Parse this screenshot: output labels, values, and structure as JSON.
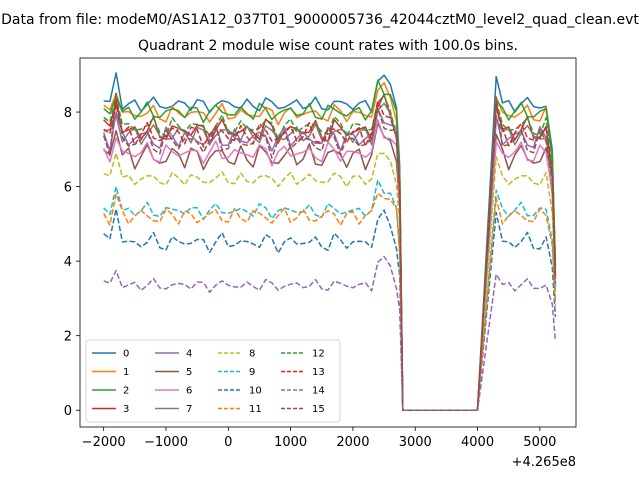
{
  "suptitle": "Data from file: modeM0/AS1A12_037T01_9000005736_42044cztM0_level2_quad_clean.evt",
  "chart_data": {
    "type": "line",
    "title": "Quadrant 2 module wise count rates with 100.0s bins.",
    "xlabel": "",
    "ylabel": "",
    "x_offset_label": "+4.265e8",
    "xlim": [
      -2380,
      5580
    ],
    "ylim": [
      -0.45,
      9.45
    ],
    "xticks": [
      -2000,
      -1000,
      0,
      1000,
      2000,
      3000,
      4000,
      5000
    ],
    "xtick_labels": [
      "−2000",
      "−1000",
      "0",
      "1000",
      "2000",
      "3000",
      "4000",
      "5000"
    ],
    "yticks": [
      0,
      2,
      4,
      6,
      8
    ],
    "ytick_labels": [
      "0",
      "2",
      "4",
      "6",
      "8"
    ],
    "grid": false,
    "legend_placement": "lower-left",
    "legend_columns": 4,
    "x_start": -2000,
    "bin_width": 100,
    "gap_start": 2800,
    "gap_end": 4000,
    "x_end": 5250,
    "tail_bin": 5200,
    "series": [
      {
        "name": "0",
        "color": "#1f77b4",
        "dash": "solid",
        "mean": 8.2,
        "amp": 0.25,
        "peak": 9.15,
        "tail": 3.8,
        "phase": 0.3
      },
      {
        "name": "1",
        "color": "#ff7f0e",
        "dash": "solid",
        "mean": 7.95,
        "amp": 0.3,
        "peak": 8.6,
        "tail": 4.0,
        "phase": 1.1
      },
      {
        "name": "2",
        "color": "#2ca02c",
        "dash": "solid",
        "mean": 8.0,
        "amp": 0.3,
        "peak": 8.5,
        "tail": 3.9,
        "phase": 2.2
      },
      {
        "name": "3",
        "color": "#d62728",
        "dash": "solid",
        "mean": 7.5,
        "amp": 0.4,
        "peak": 8.4,
        "tail": 3.6,
        "phase": 0.7
      },
      {
        "name": "4",
        "color": "#9467bd",
        "dash": "solid",
        "mean": 7.3,
        "amp": 0.4,
        "peak": 8.1,
        "tail": 3.5,
        "phase": 3.1
      },
      {
        "name": "5",
        "color": "#8c564b",
        "dash": "solid",
        "mean": 6.8,
        "amp": 0.45,
        "peak": 7.6,
        "tail": 3.4,
        "phase": 1.9
      },
      {
        "name": "6",
        "color": "#e377c2",
        "dash": "solid",
        "mean": 6.9,
        "amp": 0.35,
        "peak": 7.4,
        "tail": 3.3,
        "phase": 2.7
      },
      {
        "name": "7",
        "color": "#7f7f7f",
        "dash": "solid",
        "mean": 7.4,
        "amp": 0.35,
        "peak": 8.0,
        "tail": 3.6,
        "phase": 0.2
      },
      {
        "name": "8",
        "color": "#bcbd22",
        "dash": "dashed",
        "mean": 6.2,
        "amp": 0.25,
        "peak": 7.0,
        "tail": 3.2,
        "phase": 1.5
      },
      {
        "name": "9",
        "color": "#17becf",
        "dash": "dashed",
        "mean": 5.35,
        "amp": 0.25,
        "peak": 6.1,
        "tail": 2.9,
        "phase": 2.4
      },
      {
        "name": "10",
        "color": "#1f77b4",
        "dash": "dashed",
        "mean": 4.5,
        "amp": 0.3,
        "peak": 5.5,
        "tail": 2.5,
        "phase": 0.9
      },
      {
        "name": "11",
        "color": "#ff7f0e",
        "dash": "dashed",
        "mean": 5.2,
        "amp": 0.3,
        "peak": 5.9,
        "tail": 2.8,
        "phase": 3.4
      },
      {
        "name": "12",
        "color": "#2ca02c",
        "dash": "dashed",
        "mean": 7.6,
        "amp": 0.35,
        "peak": 8.5,
        "tail": 3.7,
        "phase": 1.2
      },
      {
        "name": "13",
        "color": "#d62728",
        "dash": "dashed",
        "mean": 7.4,
        "amp": 0.4,
        "peak": 8.3,
        "tail": 3.6,
        "phase": 2.0
      },
      {
        "name": "14",
        "color": "#9467bd",
        "dash": "dashed",
        "mean": 3.35,
        "amp": 0.2,
        "peak": 3.85,
        "tail": 1.85,
        "phase": 0.5
      },
      {
        "name": "15",
        "color": "#8c564b",
        "dash": "dashed",
        "mean": 7.2,
        "amp": 0.45,
        "peak": 8.6,
        "tail": 3.4,
        "phase": 2.9
      }
    ]
  }
}
